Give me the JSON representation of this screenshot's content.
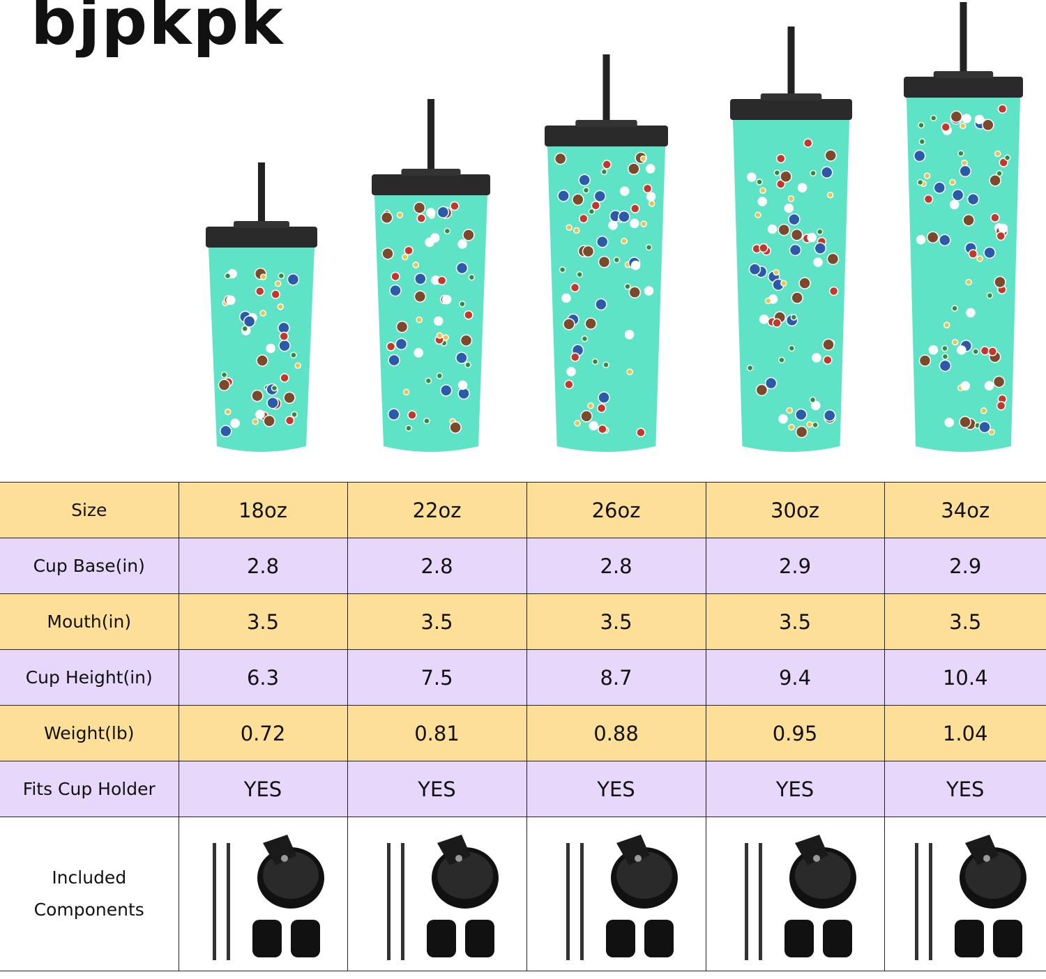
{
  "brand": {
    "logo_text": "bjpkpk"
  },
  "colors": {
    "header_row": "#FDDF98",
    "alt_row": "#E6D7FB",
    "tumbler": "#5EE3C6",
    "lid": "#2A2A2A"
  },
  "products": [
    {
      "size": "18oz"
    },
    {
      "size": "22oz"
    },
    {
      "size": "26oz"
    },
    {
      "size": "30oz"
    },
    {
      "size": "34oz"
    }
  ],
  "table": {
    "header": {
      "label": "Size",
      "values": [
        "18oz",
        "22oz",
        "26oz",
        "30oz",
        "34oz"
      ]
    },
    "rows": [
      {
        "label": "Cup Base(in)",
        "values": [
          "2.8",
          "2.8",
          "2.8",
          "2.9",
          "2.9"
        ]
      },
      {
        "label": "Mouth(in)",
        "values": [
          "3.5",
          "3.5",
          "3.5",
          "3.5",
          "3.5"
        ]
      },
      {
        "label": "Cup Height(in)",
        "values": [
          "6.3",
          "7.5",
          "8.7",
          "9.4",
          "10.4"
        ]
      },
      {
        "label": "Weight(lb)",
        "values": [
          "0.72",
          "0.81",
          "0.88",
          "0.95",
          "1.04"
        ]
      },
      {
        "label": "Fits Cup Holder",
        "values": [
          "YES",
          "YES",
          "YES",
          "YES",
          "YES"
        ]
      }
    ],
    "components": {
      "label_line1": "Included",
      "label_line2": "Components",
      "items": [
        "straws",
        "lid",
        "straw stoppers"
      ]
    }
  }
}
